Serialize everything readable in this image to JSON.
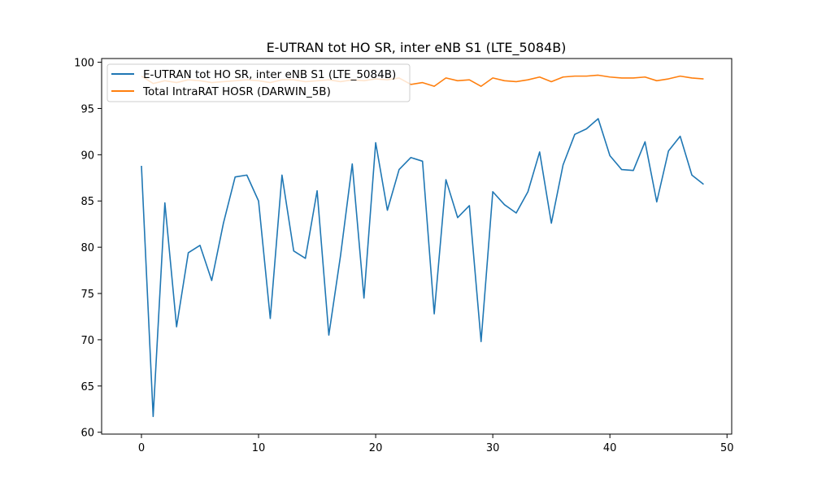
{
  "chart_data": {
    "type": "line",
    "title": "E-UTRAN tot HO SR, inter eNB S1 (LTE_5084B)",
    "xlabel": "",
    "ylabel": "",
    "xlim": [
      -3.4,
      50.4
    ],
    "ylim": [
      59.8,
      100.4
    ],
    "xticks": [
      0,
      10,
      20,
      30,
      40,
      50
    ],
    "yticks": [
      60,
      65,
      70,
      75,
      80,
      85,
      90,
      95,
      100
    ],
    "grid": false,
    "legend_position": "top-left",
    "x": [
      0,
      1,
      2,
      3,
      4,
      5,
      6,
      7,
      8,
      9,
      10,
      11,
      12,
      13,
      14,
      15,
      16,
      17,
      18,
      19,
      20,
      21,
      22,
      23,
      24,
      25,
      26,
      27,
      28,
      29,
      30,
      31,
      32,
      33,
      34,
      35,
      36,
      37,
      38,
      39,
      40,
      41,
      42,
      43,
      44,
      45,
      46,
      47,
      48
    ],
    "series": [
      {
        "name": "E-UTRAN tot HO SR, inter eNB S1 (LTE_5084B)",
        "color": "#1f77b4",
        "values": [
          88.8,
          61.7,
          84.8,
          71.4,
          79.4,
          80.2,
          76.4,
          82.6,
          87.6,
          87.8,
          85.0,
          72.3,
          87.8,
          79.6,
          78.8,
          86.1,
          70.5,
          79.1,
          89.0,
          74.5,
          91.3,
          84.0,
          88.4,
          89.7,
          89.3,
          72.8,
          87.3,
          83.2,
          84.5,
          69.8,
          86.0,
          84.6,
          83.7,
          86.0,
          90.3,
          82.6,
          88.9,
          92.2,
          92.8,
          93.9,
          89.9,
          88.4,
          88.3,
          91.4,
          84.9,
          90.4,
          92.0,
          87.8,
          86.8
        ]
      },
      {
        "name": "Total IntraRAT HOSR (DARWIN_5B)",
        "color": "#ff7f0e",
        "values": [
          98.5,
          97.7,
          98.0,
          97.8,
          98.1,
          98.0,
          97.8,
          97.9,
          98.0,
          98.1,
          98.0,
          97.8,
          98.1,
          98.1,
          97.9,
          98.0,
          98.1,
          97.9,
          98.1,
          98.0,
          98.2,
          98.1,
          98.3,
          97.6,
          97.8,
          97.4,
          98.3,
          98.0,
          98.1,
          97.4,
          98.3,
          98.0,
          97.9,
          98.1,
          98.4,
          97.9,
          98.4,
          98.5,
          98.5,
          98.6,
          98.4,
          98.3,
          98.3,
          98.4,
          98.0,
          98.2,
          98.5,
          98.3,
          98.2
        ]
      }
    ]
  }
}
